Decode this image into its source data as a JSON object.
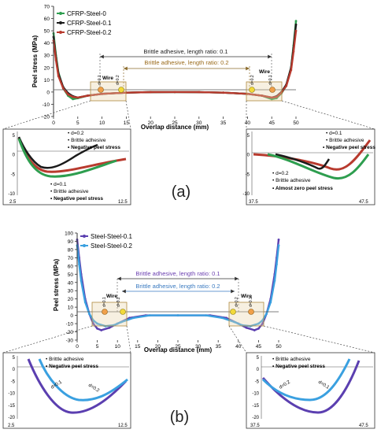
{
  "figure": {
    "panel_a_label": "(a)",
    "panel_b_label": "(b)"
  },
  "chart_data": [
    {
      "type": "line",
      "panel": "a-main",
      "xlabel": "Overlap distance (mm)",
      "ylabel": "Peel stress (MPa)",
      "xlim": [
        0,
        50
      ],
      "ylim": [
        -20,
        70
      ],
      "xticks": [
        0,
        5,
        10,
        15,
        20,
        25,
        30,
        35,
        40,
        45,
        50
      ],
      "yticks": [
        -20,
        -10,
        0,
        10,
        20,
        30,
        40,
        50,
        60,
        70
      ],
      "grid": false,
      "legend_position": "top-left",
      "series": [
        {
          "name": "CFRP-Steel-0",
          "color": "#2e9e4f",
          "x": [
            0,
            0.5,
            1,
            2,
            3,
            4,
            5,
            7,
            10,
            15,
            20,
            25,
            30,
            35,
            40,
            43,
            45,
            46,
            47,
            48,
            49,
            49.5,
            50
          ],
          "y": [
            48,
            30,
            16,
            3,
            -3,
            -5.8,
            -5,
            -3,
            -1.5,
            -0.5,
            -0.1,
            0,
            -0.1,
            -0.5,
            -1.5,
            -3,
            -5.8,
            -5,
            -1,
            5,
            20,
            38,
            58
          ]
        },
        {
          "name": "CFRP-Steel-0.1",
          "color": "#1a1a1a",
          "x": [
            0,
            0.5,
            1,
            2,
            3,
            4,
            5,
            7,
            10,
            15,
            20,
            25,
            30,
            35,
            40,
            43,
            45,
            46,
            47,
            48,
            49,
            49.5,
            50
          ],
          "y": [
            45,
            28,
            15,
            4,
            -1,
            -3.5,
            -4.5,
            -3,
            -1.5,
            -0.5,
            -0.1,
            0,
            -0.1,
            -0.5,
            -1.5,
            -3,
            -4.5,
            -3.5,
            0,
            6,
            20,
            36,
            55
          ]
        },
        {
          "name": "CFRP-Steel-0.2",
          "color": "#b83a2e",
          "x": [
            0,
            0.5,
            1,
            2,
            3,
            4,
            5,
            7,
            10,
            15,
            20,
            25,
            30,
            35,
            40,
            43,
            45,
            46,
            47,
            48,
            49,
            49.5,
            50
          ],
          "y": [
            42,
            26,
            13,
            3,
            -2,
            -4,
            -4.5,
            -3,
            -1.5,
            -0.5,
            -0.1,
            0,
            -0.1,
            -0.5,
            -1.5,
            -3,
            -4.5,
            -4,
            -0.5,
            5,
            18,
            33,
            50
          ]
        }
      ],
      "annotations": {
        "length_ratio_1": "Brittle adhesive, length ratio: 0.1",
        "length_ratio_2": "Brittle adhesive, length ratio: 0.2",
        "wire_left": "Wire",
        "wire_right": "Wire",
        "d1_left": "d=0.1",
        "d2_left": "d=0.2",
        "d1_right": "d=0.1",
        "d2_right": "d=0.2"
      }
    },
    {
      "type": "line",
      "panel": "a-zoom-left",
      "xlim": [
        2.5,
        12.5
      ],
      "ylim": [
        -10,
        5
      ],
      "xtick_labels": [
        "2.5",
        "12.5"
      ],
      "yticks": [
        5,
        0,
        -5,
        -10
      ],
      "notes_top": {
        "d": "d=0.2",
        "adhesive": "Brittle adhesive",
        "stress": "Negative peel stress"
      },
      "notes_bottom": {
        "d": "d=0.1",
        "adhesive": "Brittle adhesive",
        "stress": "Negative peel stress"
      }
    },
    {
      "type": "line",
      "panel": "a-zoom-right",
      "xlim": [
        37.5,
        47.5
      ],
      "ylim": [
        -10,
        5
      ],
      "xtick_labels": [
        "37.5",
        "47.5"
      ],
      "yticks": [
        5,
        0,
        -5,
        -10
      ],
      "notes_top": {
        "d": "d=0.1",
        "adhesive": "Brittle adhesive",
        "stress": "Negative peel stress"
      },
      "notes_bottom": {
        "d": "d=0.2",
        "adhesive": "Brittle adhesive",
        "stress": "Almost zero peel stress"
      }
    },
    {
      "type": "line",
      "panel": "b-main",
      "xlabel": "Overlap distance (mm)",
      "ylabel": "Peel stress (MPa)",
      "xlim": [
        0,
        50
      ],
      "ylim": [
        -30,
        100
      ],
      "xticks": [
        0,
        5,
        10,
        15,
        20,
        25,
        30,
        35,
        40,
        45,
        50
      ],
      "yticks": [
        -30,
        -20,
        -10,
        0,
        10,
        20,
        30,
        40,
        50,
        60,
        70,
        80,
        90,
        100
      ],
      "grid": false,
      "legend_position": "top-left",
      "series": [
        {
          "name": "Steel-Steel-0.1",
          "color": "#5b3fb0",
          "x": [
            0,
            0.5,
            1,
            2,
            3,
            4,
            5,
            6,
            8,
            10,
            13,
            17,
            25,
            33,
            37,
            40,
            42,
            44,
            45,
            46,
            47,
            48,
            49,
            49.5,
            50
          ],
          "y": [
            92,
            70,
            50,
            20,
            2,
            -10,
            -16,
            -18,
            -15,
            -10,
            -3,
            0,
            0,
            0,
            -3,
            -10,
            -15,
            -18,
            -16,
            -10,
            2,
            20,
            50,
            70,
            92
          ]
        },
        {
          "name": "Steel-Steel-0.2",
          "color": "#3aa0e0",
          "x": [
            0,
            0.5,
            1,
            2,
            3,
            4,
            5,
            7,
            9,
            11,
            14,
            18,
            25,
            32,
            36,
            39,
            41,
            43,
            45,
            46,
            47,
            48,
            49,
            49.5,
            50
          ],
          "y": [
            85,
            62,
            42,
            16,
            2,
            -6,
            -10,
            -13,
            -12,
            -8,
            -3,
            0,
            0,
            0,
            -3,
            -8,
            -12,
            -13,
            -10,
            -6,
            2,
            16,
            42,
            62,
            85
          ]
        }
      ],
      "annotations": {
        "length_ratio_1": "Brittle adhesive, length ratio: 0.1",
        "length_ratio_2": "Brittle adhesive, length ratio: 0.2",
        "wire_left": "Wire",
        "wire_right": "Wire",
        "d1_left": "d=0.1",
        "d2_left": "d=0.2",
        "d1_right": "d=0.2",
        "d2_right": "d=0.1"
      }
    },
    {
      "type": "line",
      "panel": "b-zoom-left",
      "xlim": [
        2.5,
        12.5
      ],
      "ylim": [
        -20,
        5
      ],
      "xtick_labels": [
        "2.5",
        "12.5"
      ],
      "yticks": [
        5,
        0,
        -5,
        -10,
        -15,
        -20
      ],
      "notes": {
        "adhesive": "Brittle adhesive",
        "stress": "Negative peel stress",
        "d1": "d=0.1",
        "d2": "d=0.2"
      }
    },
    {
      "type": "line",
      "panel": "b-zoom-right",
      "xlim": [
        37.5,
        47.5
      ],
      "ylim": [
        -20,
        5
      ],
      "xtick_labels": [
        "37.5",
        "47.5"
      ],
      "yticks": [
        5,
        0,
        -5,
        -10,
        -15,
        -20
      ],
      "notes": {
        "adhesive": "Brittle adhesive",
        "stress": "Negative peel stress",
        "d1": "d=0.2",
        "d2": "d=0.1"
      }
    }
  ]
}
